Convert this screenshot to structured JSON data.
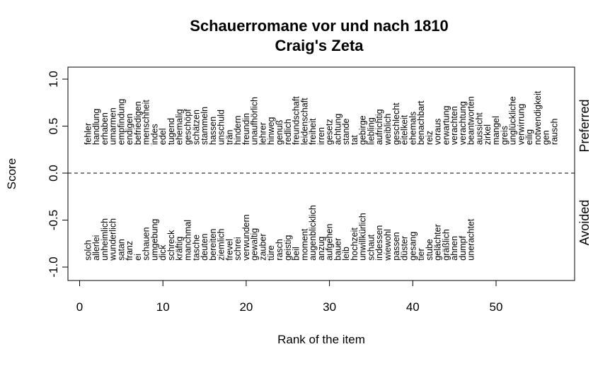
{
  "chart_data": {
    "type": "scatter",
    "title": "Schauerromane vor und nach 1810",
    "subtitle": "Craig's Zeta",
    "xlabel": "Rank of the item",
    "ylabel": "Score",
    "xlim": [
      -1,
      60
    ],
    "ylim": [
      -1.1,
      1.1
    ],
    "x_ticks": [
      0,
      10,
      20,
      30,
      40,
      50
    ],
    "y_ticks": [
      -1.0,
      -0.5,
      0.0,
      0.5,
      1.0
    ],
    "x_tick_labels": [
      "0",
      "10",
      "20",
      "30",
      "40",
      "50"
    ],
    "y_tick_labels": [
      "-1.0",
      "-0.5",
      "0.0",
      "0.5",
      "1.0"
    ],
    "reference_line": {
      "y": 0,
      "style": "dashed"
    },
    "side_labels": {
      "top": "Preferred",
      "bottom": "Avoided"
    },
    "series": [
      {
        "name": "Preferred",
        "points": [
          {
            "x": 1,
            "label": "fehler"
          },
          {
            "x": 2,
            "label": "handlung"
          },
          {
            "x": 3,
            "label": "erhaben"
          },
          {
            "x": 4,
            "label": "umarmen"
          },
          {
            "x": 5,
            "label": "empfindung"
          },
          {
            "x": 6,
            "label": "endigen"
          },
          {
            "x": 7,
            "label": "befriedigen"
          },
          {
            "x": 8,
            "label": "menschheit"
          },
          {
            "x": 9,
            "label": "indes"
          },
          {
            "x": 10,
            "label": "edel"
          },
          {
            "x": 11,
            "label": "tugend"
          },
          {
            "x": 12,
            "label": "ehemalig"
          },
          {
            "x": 13,
            "label": "geschöpf"
          },
          {
            "x": 14,
            "label": "schätzen"
          },
          {
            "x": 15,
            "label": "stammeln"
          },
          {
            "x": 16,
            "label": "hassen"
          },
          {
            "x": 17,
            "label": "unschuld"
          },
          {
            "x": 18,
            "label": "trän"
          },
          {
            "x": 19,
            "label": "hindern"
          },
          {
            "x": 20,
            "label": "freundin"
          },
          {
            "x": 21,
            "label": "unaufhörlich"
          },
          {
            "x": 22,
            "label": "lehrer"
          },
          {
            "x": 23,
            "label": "hinweg"
          },
          {
            "x": 24,
            "label": "genuß"
          },
          {
            "x": 25,
            "label": "redlich"
          },
          {
            "x": 26,
            "label": "freundschaft"
          },
          {
            "x": 27,
            "label": "leidenschaft"
          },
          {
            "x": 28,
            "label": "freiheit"
          },
          {
            "x": 29,
            "label": "irren"
          },
          {
            "x": 30,
            "label": "gesetz"
          },
          {
            "x": 31,
            "label": "achtung"
          },
          {
            "x": 32,
            "label": "stande"
          },
          {
            "x": 33,
            "label": "tat"
          },
          {
            "x": 34,
            "label": "gebirge"
          },
          {
            "x": 35,
            "label": "liebling"
          },
          {
            "x": 36,
            "label": "aufrichtig"
          },
          {
            "x": 37,
            "label": "weiblich"
          },
          {
            "x": 38,
            "label": "geschlecht"
          },
          {
            "x": 39,
            "label": "eitelkeit"
          },
          {
            "x": 40,
            "label": "ehemals"
          },
          {
            "x": 41,
            "label": "benachbart"
          },
          {
            "x": 42,
            "label": "reiz"
          },
          {
            "x": 43,
            "label": "voraus"
          },
          {
            "x": 44,
            "label": "erwartung"
          },
          {
            "x": 45,
            "label": "verachten"
          },
          {
            "x": 46,
            "label": "verachtung"
          },
          {
            "x": 47,
            "label": "beantworten"
          },
          {
            "x": 48,
            "label": "aussicht"
          },
          {
            "x": 49,
            "label": "zirkel"
          },
          {
            "x": 50,
            "label": "mangel"
          },
          {
            "x": 51,
            "label": "greis"
          },
          {
            "x": 52,
            "label": "unglückliche"
          },
          {
            "x": 53,
            "label": "verwirrung"
          },
          {
            "x": 54,
            "label": "eilig"
          },
          {
            "x": 55,
            "label": "notwendigkeit"
          },
          {
            "x": 56,
            "label": "gen"
          },
          {
            "x": 57,
            "label": "rausch"
          }
        ]
      },
      {
        "name": "Avoided",
        "points": [
          {
            "x": 1,
            "label": "solch"
          },
          {
            "x": 2,
            "label": "allerlei"
          },
          {
            "x": 3,
            "label": "unheimlich"
          },
          {
            "x": 4,
            "label": "wunderlich"
          },
          {
            "x": 5,
            "label": "satan"
          },
          {
            "x": 6,
            "label": "franz"
          },
          {
            "x": 7,
            "label": "ei"
          },
          {
            "x": 8,
            "label": "schauen"
          },
          {
            "x": 9,
            "label": "umgebung"
          },
          {
            "x": 10,
            "label": "dick"
          },
          {
            "x": 11,
            "label": "schreck"
          },
          {
            "x": 12,
            "label": "kräftig"
          },
          {
            "x": 13,
            "label": "manchmal"
          },
          {
            "x": 14,
            "label": "tasche"
          },
          {
            "x": 15,
            "label": "deuten"
          },
          {
            "x": 16,
            "label": "bereiten"
          },
          {
            "x": 17,
            "label": "ziemlich"
          },
          {
            "x": 18,
            "label": "frevel"
          },
          {
            "x": 19,
            "label": "schrei"
          },
          {
            "x": 20,
            "label": "verwundern"
          },
          {
            "x": 21,
            "label": "gewaltig"
          },
          {
            "x": 22,
            "label": "zauber"
          },
          {
            "x": 23,
            "label": "türe"
          },
          {
            "x": 24,
            "label": "rasch"
          },
          {
            "x": 25,
            "label": "geistig"
          },
          {
            "x": 26,
            "label": "beil"
          },
          {
            "x": 27,
            "label": "moment"
          },
          {
            "x": 28,
            "label": "augenblicklich"
          },
          {
            "x": 29,
            "label": "anzug"
          },
          {
            "x": 30,
            "label": "aufgehen"
          },
          {
            "x": 31,
            "label": "bauer"
          },
          {
            "x": 32,
            "label": "leib"
          },
          {
            "x": 33,
            "label": "hochzeit"
          },
          {
            "x": 34,
            "label": "unwillkürlich"
          },
          {
            "x": 35,
            "label": "schaut"
          },
          {
            "x": 36,
            "label": "indessen"
          },
          {
            "x": 37,
            "label": "wiewohl"
          },
          {
            "x": 38,
            "label": "passen"
          },
          {
            "x": 39,
            "label": "düster"
          },
          {
            "x": 40,
            "label": "gesang"
          },
          {
            "x": 41,
            "label": "tier"
          },
          {
            "x": 42,
            "label": "stube"
          },
          {
            "x": 43,
            "label": "gelächter"
          },
          {
            "x": 44,
            "label": "gräßlich"
          },
          {
            "x": 45,
            "label": "ahnen"
          },
          {
            "x": 46,
            "label": "dumpf"
          },
          {
            "x": 47,
            "label": "unerachtet"
          }
        ]
      }
    ]
  }
}
